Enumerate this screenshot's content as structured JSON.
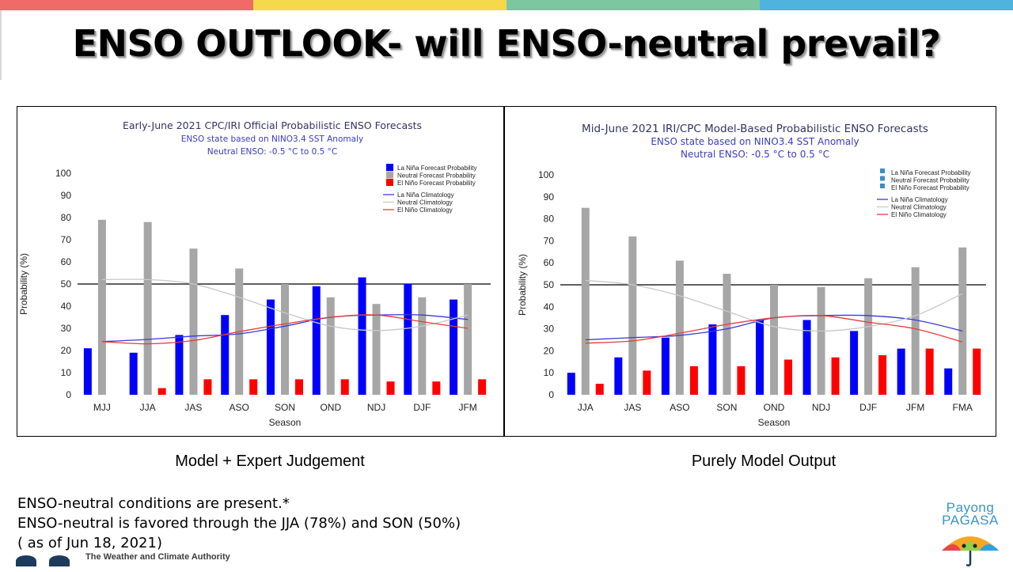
{
  "slide": {
    "title": "ENSO OUTLOOK- will ENSO-neutral prevail?",
    "bar_colors": [
      "#f06a6a",
      "#f3d94b",
      "#7cc7a0",
      "#4fb3e0"
    ],
    "captions": {
      "left": "Model + Expert Judgement",
      "right": "Purely Model Output"
    },
    "notes": [
      "ENSO-neutral conditions are present.*",
      "ENSO-neutral is favored through the JJA (78%) and SON (50%)",
      "( as of Jun 18, 2021)"
    ],
    "logo": {
      "line1": "Payong",
      "line2": "PAGASA"
    },
    "footer_fragment": "The Weather and Climate Authority"
  },
  "chart_data": [
    {
      "type": "bar",
      "title": "Early-June 2021 CPC/IRI Official Probabilistic ENSO Forecasts",
      "subtitle": [
        "ENSO state based on NINO3.4 SST Anomaly",
        "Neutral ENSO: -0.5 °C to 0.5 °C"
      ],
      "xlabel": "Season",
      "ylabel": "Probability (%)",
      "ylim": [
        0,
        100
      ],
      "yticks": [
        0,
        10,
        20,
        30,
        40,
        50,
        60,
        70,
        80,
        90,
        100
      ],
      "reference_line": 50,
      "categories": [
        "MJJ",
        "JJA",
        "JAS",
        "ASO",
        "SON",
        "OND",
        "NDJ",
        "DJF",
        "JFM"
      ],
      "series": [
        {
          "name": "La Niña Forecast Probability",
          "color": "#0000ff",
          "values": [
            21,
            19,
            27,
            36,
            43,
            49,
            53,
            50,
            43
          ]
        },
        {
          "name": "Neutral Forecast Probability",
          "color": "#a6a6a6",
          "values": [
            79,
            78,
            66,
            57,
            50,
            44,
            41,
            44,
            50
          ]
        },
        {
          "name": "El Niño Forecast Probability",
          "color": "#ff0000",
          "values": [
            0,
            3,
            7,
            7,
            7,
            7,
            6,
            6,
            7
          ]
        }
      ],
      "climatology": [
        {
          "name": "La Niña Climatology",
          "color": "#3a3ad6",
          "values": [
            24,
            25,
            26.5,
            27.5,
            31,
            35,
            36,
            36,
            34
          ]
        },
        {
          "name": "Neutral Climatology",
          "color": "#c8c8c8",
          "values": [
            52,
            52,
            50,
            44,
            37,
            31,
            29,
            31,
            36
          ]
        },
        {
          "name": "El Niño Climatology",
          "color": "#e83a3a",
          "values": [
            24,
            23,
            24.5,
            28.5,
            32,
            35,
            36,
            33,
            30
          ]
        }
      ],
      "legend_position": "top-right"
    },
    {
      "type": "bar",
      "title": "Mid-June 2021 IRI/CPC Model-Based Probabilistic ENSO Forecasts",
      "subtitle": [
        "ENSO state based on NINO3.4 SST Anomaly",
        "Neutral ENSO: -0.5 °C to 0.5 °C"
      ],
      "xlabel": "Season",
      "ylabel": "Probability (%)",
      "ylim": [
        0,
        100
      ],
      "yticks": [
        0,
        10,
        20,
        30,
        40,
        50,
        60,
        70,
        80,
        90,
        100
      ],
      "reference_line": 50,
      "categories": [
        "JJA",
        "JAS",
        "ASO",
        "SON",
        "OND",
        "NDJ",
        "DJF",
        "JFM",
        "FMA"
      ],
      "series": [
        {
          "name": "La Niña Forecast Probability",
          "color": "#0000ff",
          "values": [
            10,
            17,
            26,
            32,
            34,
            34,
            29,
            21,
            12
          ]
        },
        {
          "name": "Neutral Forecast Probability",
          "color": "#a6a6a6",
          "values": [
            85,
            72,
            61,
            55,
            50,
            49,
            53,
            58,
            67
          ]
        },
        {
          "name": "El Niño Forecast Probability",
          "color": "#ff0000",
          "values": [
            5,
            11,
            13,
            13,
            16,
            17,
            18,
            21,
            21
          ]
        }
      ],
      "climatology": [
        {
          "name": "La Niña Climatology",
          "color": "#3a3ad6",
          "values": [
            25,
            26,
            27,
            30,
            35,
            36,
            36,
            34,
            29
          ]
        },
        {
          "name": "Neutral Climatology",
          "color": "#c8c8c8",
          "values": [
            52,
            50,
            45,
            38,
            31,
            29,
            31,
            36,
            46
          ]
        },
        {
          "name": "El Niño Climatology",
          "color": "#e83a3a",
          "values": [
            23.5,
            24.5,
            28,
            32,
            35,
            36,
            33,
            30,
            24
          ]
        }
      ],
      "legend_position": "top-right"
    }
  ]
}
